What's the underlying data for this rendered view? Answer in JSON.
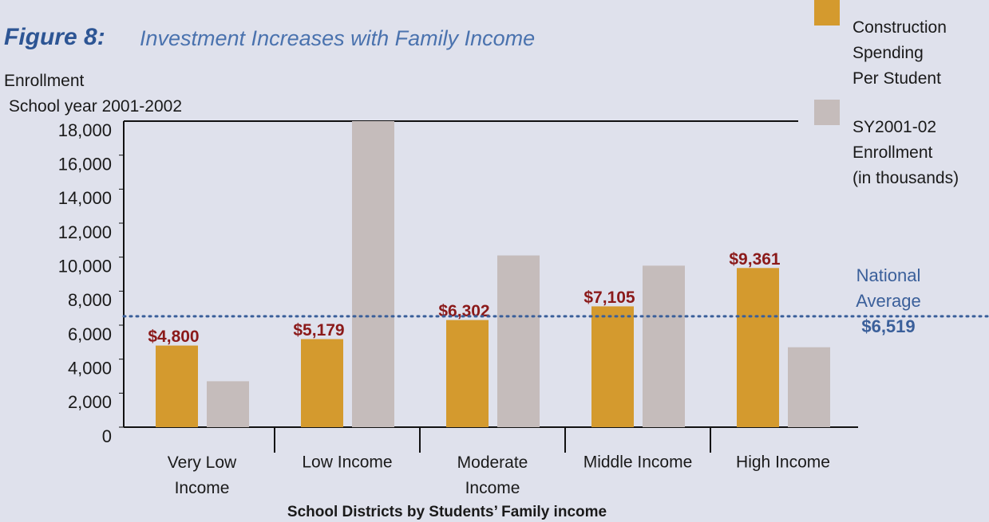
{
  "chart_data": {
    "type": "bar",
    "title_label": "Figure 8:",
    "title": "Investment Increases with Family Income",
    "y_label": "Enrollment\n School year 2001-2002",
    "x_label": "School Districts by Students’ Family income",
    "categories": [
      "Very Low\nIncome",
      "Low Income",
      "Moderate\nIncome",
      "Middle Income",
      "High Income"
    ],
    "series": [
      {
        "name": "Construction\nSpending\nPer Student",
        "color": "#d49a2e",
        "values": [
          4800,
          5179,
          6302,
          7105,
          9361
        ],
        "value_labels": [
          "$4,800",
          "$5,179",
          "$6,302",
          "$7,105",
          "$9,361"
        ]
      },
      {
        "name": "SY2001-02\nEnrollment\n(in thousands)",
        "color": "#c5bcbb",
        "values": [
          2700,
          18000,
          10100,
          9500,
          4700
        ]
      }
    ],
    "ylim": [
      0,
      18000
    ],
    "yticks": [
      {
        "value": 0,
        "label": "0"
      },
      {
        "value": 2000,
        "label": "2,000"
      },
      {
        "value": 4000,
        "label": "4,000"
      },
      {
        "value": 6000,
        "label": "6,000"
      },
      {
        "value": 8000,
        "label": "8,000"
      },
      {
        "value": 10000,
        "label": "10,000"
      },
      {
        "value": 12000,
        "label": "12,000"
      },
      {
        "value": 14000,
        "label": "14,000"
      },
      {
        "value": 16000,
        "label": "16,000"
      },
      {
        "value": 18000,
        "label": "18,000"
      }
    ],
    "reference_line": {
      "label": "National\nAverage",
      "value": 6519,
      "value_label": "$6,519",
      "color": "#3a5f9a"
    },
    "legend": "top-right"
  }
}
